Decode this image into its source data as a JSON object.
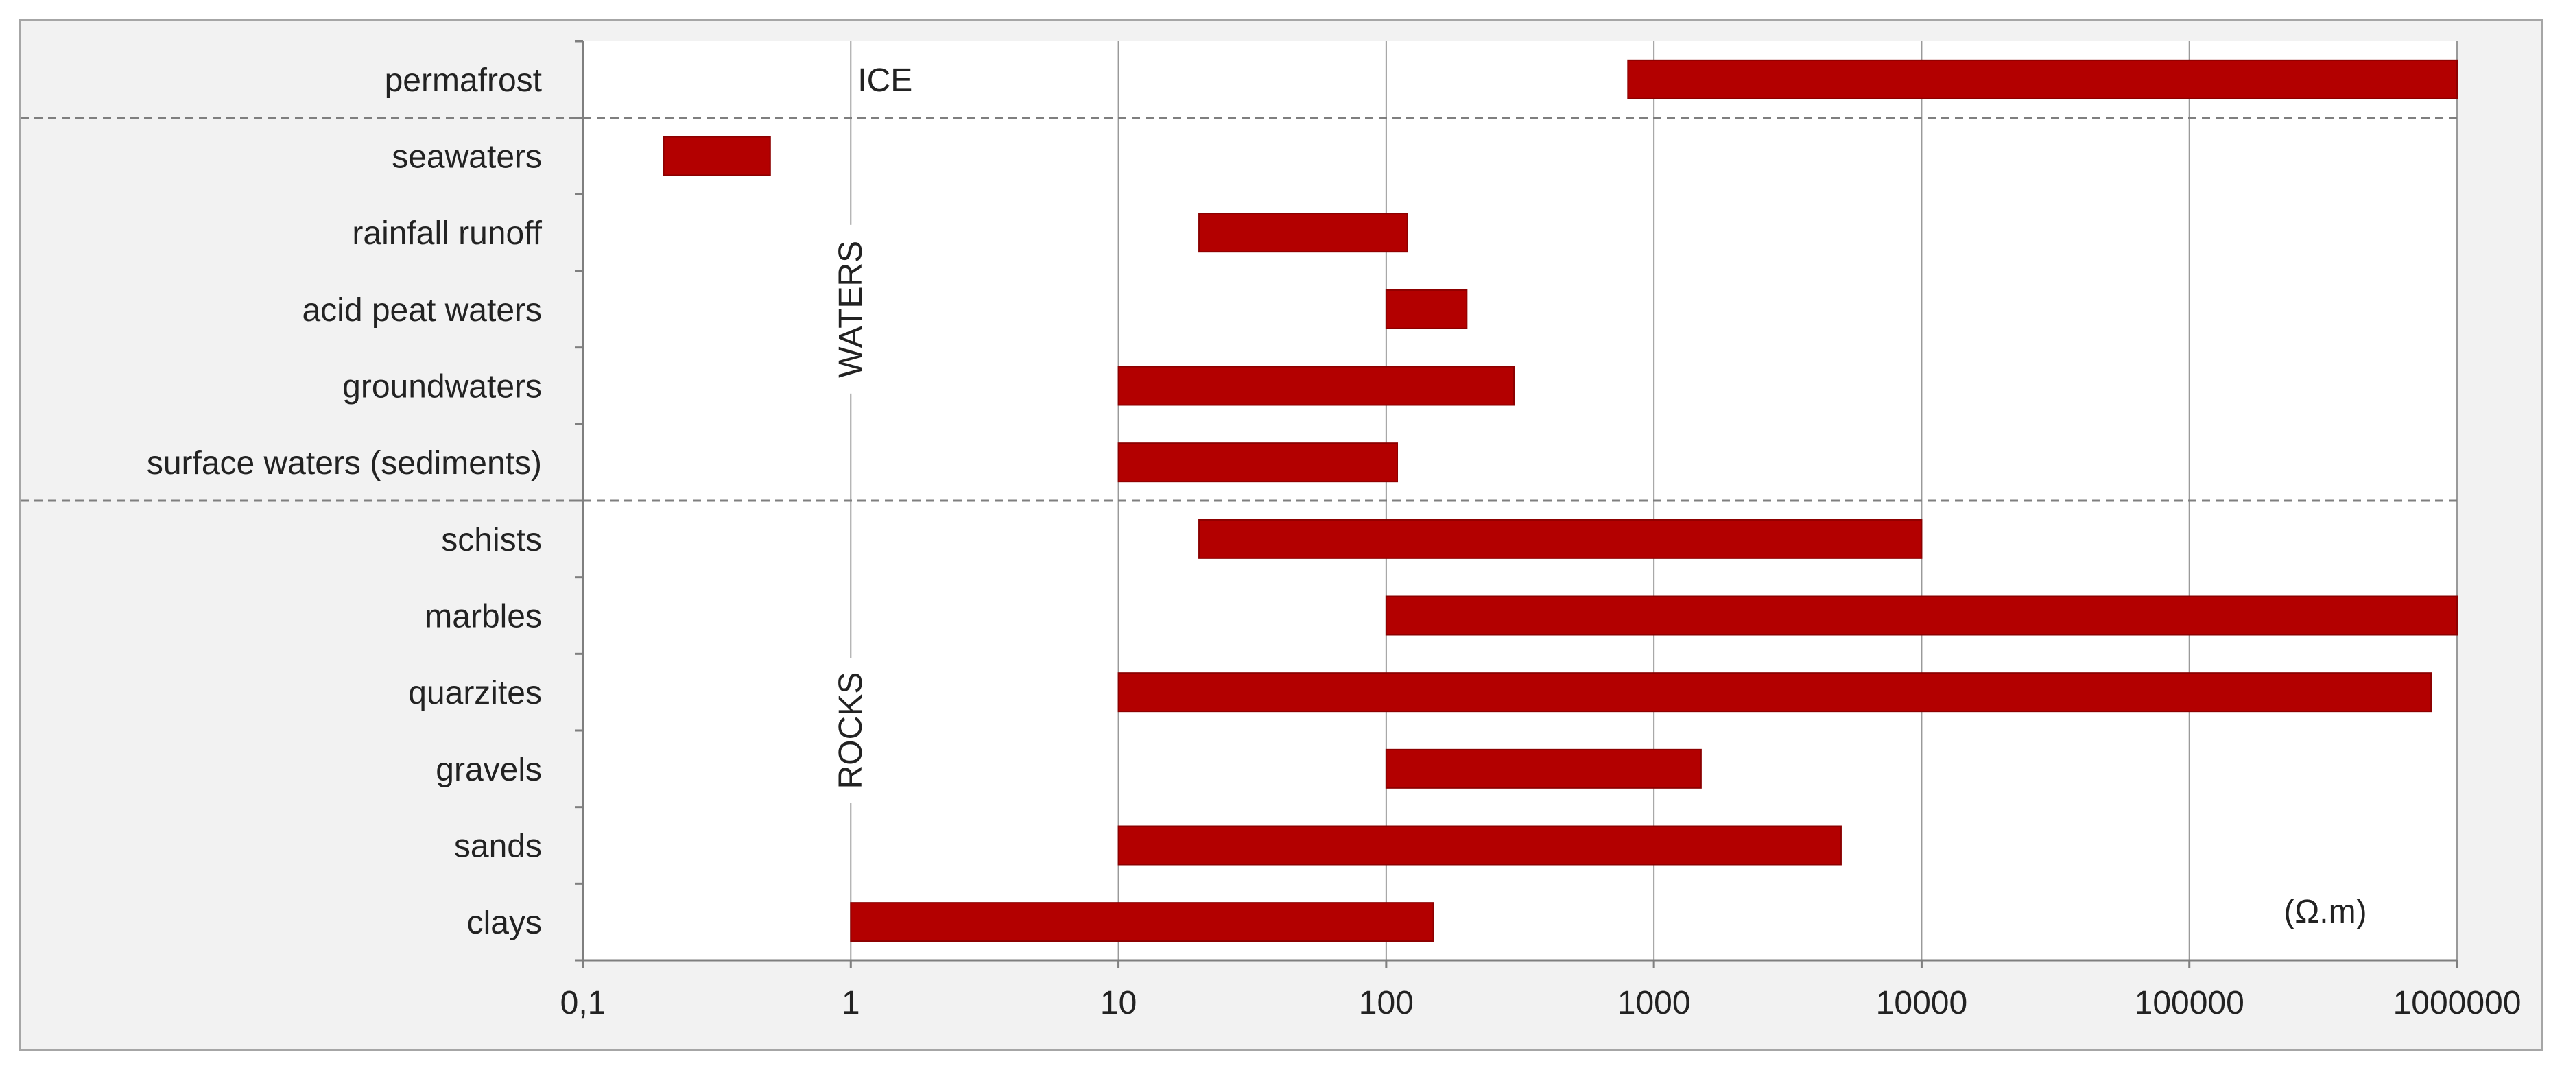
{
  "chart_data": {
    "type": "bar",
    "orientation": "horizontal",
    "x_scale": "log",
    "xlim": [
      0.1,
      1000000
    ],
    "x_ticks": [
      0.1,
      1,
      10,
      100,
      1000,
      10000,
      100000,
      1000000
    ],
    "x_tick_labels": [
      "0,1",
      "1",
      "10",
      "100",
      "1000",
      "10000",
      "100000",
      "1000000"
    ],
    "unit_label": "(Ω.m)",
    "bar_color": "#b30000",
    "grid": "vertical",
    "categories": [
      "permafrost",
      "seawaters",
      "rainfall runoff",
      "acid peat waters",
      "groundwaters",
      "surface waters (sediments)",
      "schists",
      "marbles",
      "quarzites",
      "gravels",
      "sands",
      "clays"
    ],
    "ranges": [
      [
        800,
        1000000
      ],
      [
        0.2,
        0.5
      ],
      [
        20,
        120
      ],
      [
        100,
        200
      ],
      [
        10,
        300
      ],
      [
        10,
        110
      ],
      [
        20,
        10000
      ],
      [
        100,
        1000000
      ],
      [
        10,
        800000
      ],
      [
        100,
        1500
      ],
      [
        10,
        5000
      ],
      [
        1,
        150
      ]
    ],
    "groups": [
      {
        "label": "ICE",
        "rows": [
          0,
          0
        ]
      },
      {
        "label": "WATERS",
        "rows": [
          1,
          5
        ]
      },
      {
        "label": "ROCKS",
        "rows": [
          6,
          11
        ]
      }
    ]
  }
}
